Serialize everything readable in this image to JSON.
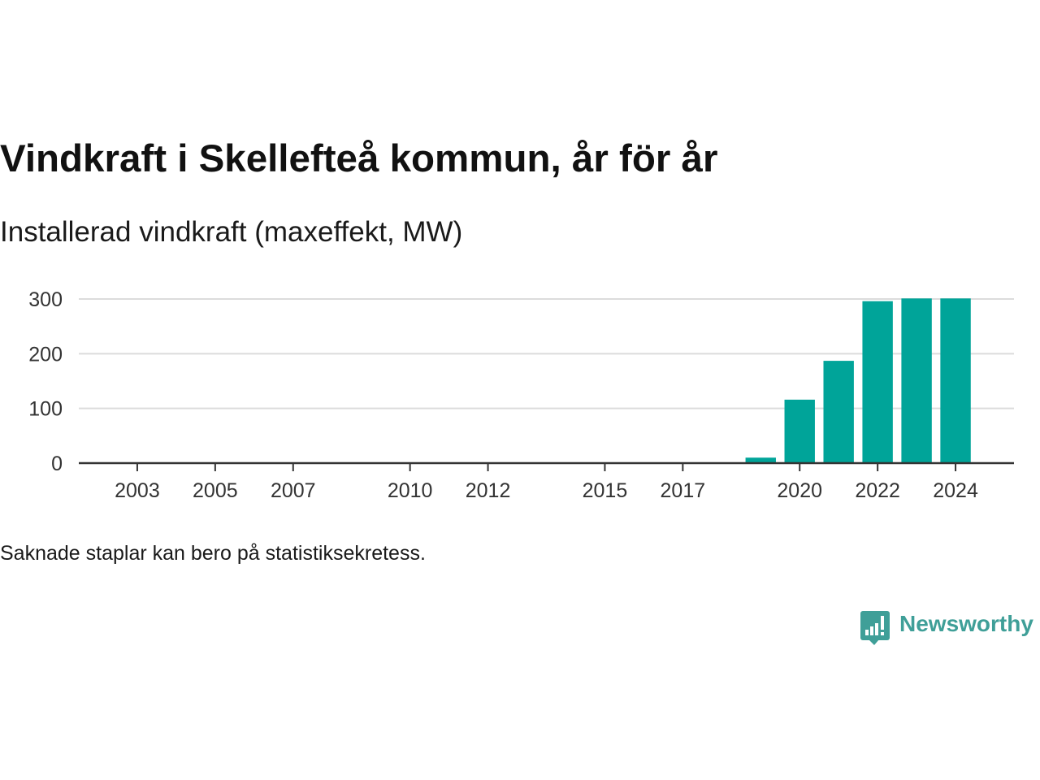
{
  "chart_data": {
    "type": "bar",
    "title": "Vindkraft i Skellefteå kommun, år för år",
    "subtitle": "Installerad vindkraft (maxeffekt, MW)",
    "x": [
      2019,
      2020,
      2021,
      2022,
      2023,
      2024
    ],
    "values": [
      10,
      116,
      187,
      296,
      301,
      301
    ],
    "xticks": [
      2003,
      2005,
      2007,
      2010,
      2012,
      2015,
      2017,
      2020,
      2022,
      2024
    ],
    "yticks": [
      0,
      100,
      200,
      300
    ],
    "xlim": [
      2001.5,
      2025.5
    ],
    "ylim": [
      0,
      300
    ],
    "grid": true
  },
  "footnote": "Saknade staplar kan bero på statistiksekretess.",
  "logo": {
    "icon": "speech-bubble-bar-chart-icon",
    "text": "Newsworthy"
  },
  "colors": {
    "background": "#ffffff",
    "title": "#111111",
    "text": "#1a1a1a",
    "tick_text": "#333333",
    "bar": "#00a499",
    "grid": "#dcdcdc",
    "axis": "#333333",
    "logo": "#3f9f98"
  }
}
